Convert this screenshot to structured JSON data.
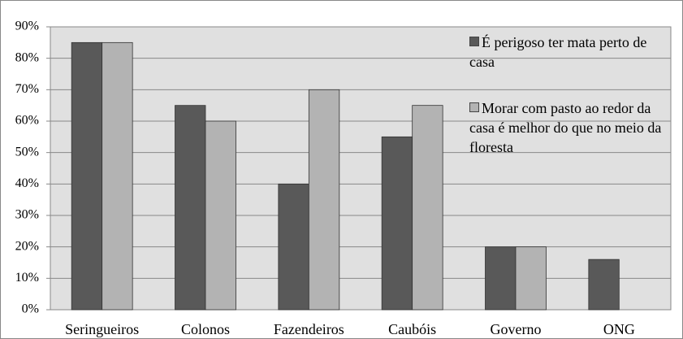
{
  "chart_data": {
    "type": "bar",
    "categories": [
      "Seringueiros",
      "Colonos",
      "Fazendeiros",
      "Caubóis",
      "Governo",
      "ONG"
    ],
    "series": [
      {
        "name": "É perigoso ter mata perto de casa",
        "color": "#595959",
        "values": [
          85,
          65,
          40,
          55,
          20,
          16
        ]
      },
      {
        "name": "Morar com pasto ao redor da casa é melhor do que no meio da floresta",
        "color": "#b3b3b3",
        "values": [
          85,
          60,
          70,
          65,
          20,
          null
        ]
      }
    ],
    "ylim": [
      0,
      90
    ],
    "yticks": [
      {
        "value": 0,
        "label": "0%"
      },
      {
        "value": 10,
        "label": "10%"
      },
      {
        "value": 20,
        "label": "20%"
      },
      {
        "value": 30,
        "label": "30%"
      },
      {
        "value": 40,
        "label": "40%"
      },
      {
        "value": 50,
        "label": "50%"
      },
      {
        "value": 60,
        "label": "60%"
      },
      {
        "value": 70,
        "label": "70%"
      },
      {
        "value": 80,
        "label": "80%"
      },
      {
        "value": 90,
        "label": "90%"
      }
    ],
    "grid": true,
    "background": "#e0e0e0",
    "legend": "upper right"
  }
}
